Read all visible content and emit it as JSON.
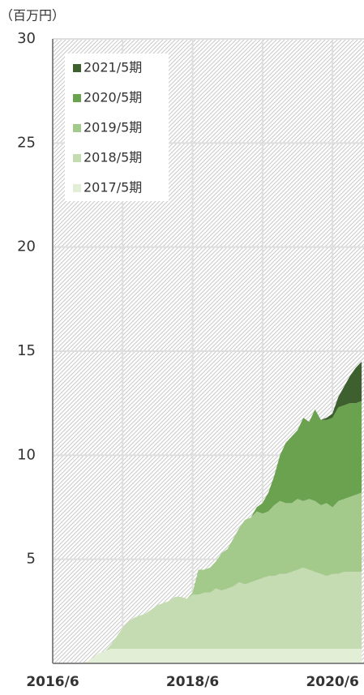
{
  "chart_data": {
    "type": "stacked_area",
    "y_label": "（百万円）",
    "categories": [
      "2016/6",
      null,
      null,
      null,
      null,
      null,
      null,
      null,
      null,
      null,
      null,
      null,
      null,
      null,
      null,
      null,
      null,
      null,
      null,
      null,
      null,
      null,
      null,
      null,
      "2018/6",
      null,
      null,
      null,
      null,
      null,
      null,
      null,
      null,
      null,
      null,
      null,
      null,
      null,
      null,
      null,
      null,
      null,
      null,
      null,
      null,
      null,
      null,
      null,
      "2020/6",
      null,
      null,
      null,
      null,
      null
    ],
    "series": [
      {
        "name": "2017/5期",
        "color": "#e2eed6",
        "values": [
          0,
          0,
          0,
          0,
          0,
          0,
          0.1,
          0.3,
          0.5,
          0.6,
          0.7,
          0.7,
          0.7,
          0.7,
          0.7,
          0.7,
          0.7,
          0.7,
          0.7,
          0.7,
          0.7,
          0.7,
          0.7,
          0.7,
          0.7,
          0.7,
          0.7,
          0.7,
          0.7,
          0.7,
          0.7,
          0.7,
          0.7,
          0.7,
          0.7,
          0.7,
          0.7,
          0.7,
          0.7,
          0.7,
          0.7,
          0.7,
          0.7,
          0.7,
          0.7,
          0.7,
          0.7,
          0.7,
          0.7,
          0.7,
          0.7,
          0.7,
          0.7,
          0.7
        ]
      },
      {
        "name": "2018/5期",
        "color": "#c5dcb3",
        "values": [
          0,
          0,
          0,
          0,
          0,
          0,
          0,
          0,
          0,
          0,
          0.2,
          0.6,
          1.0,
          1.3,
          1.5,
          1.6,
          1.7,
          1.9,
          2.1,
          2.2,
          2.3,
          2.5,
          2.5,
          2.4,
          2.6,
          2.6,
          2.7,
          2.7,
          2.9,
          2.8,
          2.9,
          3.0,
          3.2,
          3.1,
          3.2,
          3.3,
          3.4,
          3.5,
          3.5,
          3.6,
          3.6,
          3.7,
          3.8,
          3.9,
          3.8,
          3.7,
          3.6,
          3.5,
          3.6,
          3.6,
          3.7,
          3.7,
          3.7,
          3.7
        ]
      },
      {
        "name": "2019/5期",
        "color": "#a3c98b",
        "values": [
          0,
          0,
          0,
          0,
          0,
          0,
          0,
          0,
          0,
          0,
          0,
          0,
          0,
          0,
          0,
          0,
          0,
          0,
          0,
          0,
          0,
          0,
          0,
          0,
          0.1,
          1.2,
          1.1,
          1.2,
          1.3,
          1.8,
          1.9,
          2.3,
          2.6,
          3.1,
          3.1,
          3.3,
          3.1,
          3.1,
          3.4,
          3.5,
          3.4,
          3.3,
          3.4,
          3.2,
          3.4,
          3.4,
          3.3,
          3.5,
          3.2,
          3.5,
          3.5,
          3.6,
          3.7,
          3.8
        ]
      },
      {
        "name": "2020/5期",
        "color": "#6aa250",
        "values": [
          0,
          0,
          0,
          0,
          0,
          0,
          0,
          0,
          0,
          0,
          0,
          0,
          0,
          0,
          0,
          0,
          0,
          0,
          0,
          0,
          0,
          0,
          0,
          0,
          0,
          0,
          0,
          0,
          0,
          0,
          0,
          0,
          0,
          0,
          0,
          0.2,
          0.5,
          0.9,
          1.4,
          2.2,
          2.9,
          3.2,
          3.3,
          4.0,
          3.7,
          4.4,
          4.1,
          4.0,
          4.3,
          4.5,
          4.5,
          4.5,
          4.4,
          4.4
        ]
      },
      {
        "name": "2021/5期",
        "color": "#3e5f2e",
        "values": [
          0,
          0,
          0,
          0,
          0,
          0,
          0,
          0,
          0,
          0,
          0,
          0,
          0,
          0,
          0,
          0,
          0,
          0,
          0,
          0,
          0,
          0,
          0,
          0,
          0,
          0,
          0,
          0,
          0,
          0,
          0,
          0,
          0,
          0,
          0,
          0,
          0,
          0,
          0,
          0,
          0,
          0,
          0,
          0,
          0,
          0,
          0,
          0.1,
          0.2,
          0.5,
          0.9,
          1.3,
          1.7,
          1.9
        ]
      }
    ],
    "ylim": [
      0,
      30
    ],
    "yticks": [
      5,
      10,
      15,
      20,
      25,
      30
    ],
    "grid": true,
    "legend": "upper left"
  }
}
